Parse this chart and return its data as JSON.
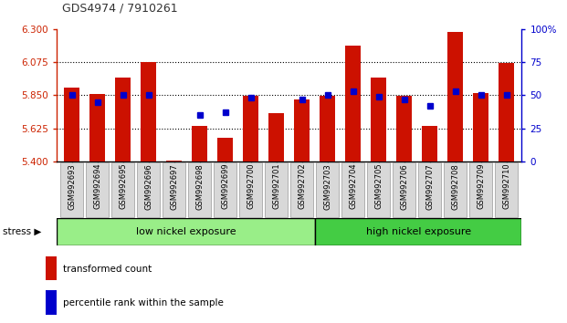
{
  "title": "GDS4974 / 7910261",
  "samples": [
    "GSM992693",
    "GSM992694",
    "GSM992695",
    "GSM992696",
    "GSM992697",
    "GSM992698",
    "GSM992699",
    "GSM992700",
    "GSM992701",
    "GSM992702",
    "GSM992703",
    "GSM992704",
    "GSM992705",
    "GSM992706",
    "GSM992707",
    "GSM992708",
    "GSM992709",
    "GSM992710"
  ],
  "transformed_count": [
    5.9,
    5.86,
    5.97,
    6.075,
    5.405,
    5.64,
    5.56,
    5.845,
    5.73,
    5.82,
    5.845,
    6.19,
    5.97,
    5.845,
    5.64,
    6.28,
    5.865,
    6.07
  ],
  "percentile_rank": [
    50,
    45,
    50,
    50,
    null,
    35,
    37,
    48,
    null,
    47,
    50,
    53,
    49,
    47,
    42,
    53,
    50,
    50
  ],
  "ylim_left": [
    5.4,
    6.3
  ],
  "ylim_right": [
    0,
    100
  ],
  "yticks_left": [
    5.4,
    5.625,
    5.85,
    6.075,
    6.3
  ],
  "yticks_right": [
    0,
    25,
    50,
    75,
    100
  ],
  "hlines": [
    5.625,
    5.85,
    6.075
  ],
  "group1_label": "low nickel exposure",
  "group2_label": "high nickel exposure",
  "group1_count": 10,
  "group2_count": 8,
  "stress_label": "stress",
  "legend1": "transformed count",
  "legend2": "percentile rank within the sample",
  "bar_color": "#cc1100",
  "dot_color": "#0000cc",
  "group1_color": "#99ee88",
  "group2_color": "#44cc44",
  "title_color": "#333333",
  "axis_left_color": "#cc2200",
  "axis_right_color": "#0000cc",
  "bar_width": 0.6,
  "fig_width": 6.21,
  "fig_height": 3.54,
  "dpi": 100
}
